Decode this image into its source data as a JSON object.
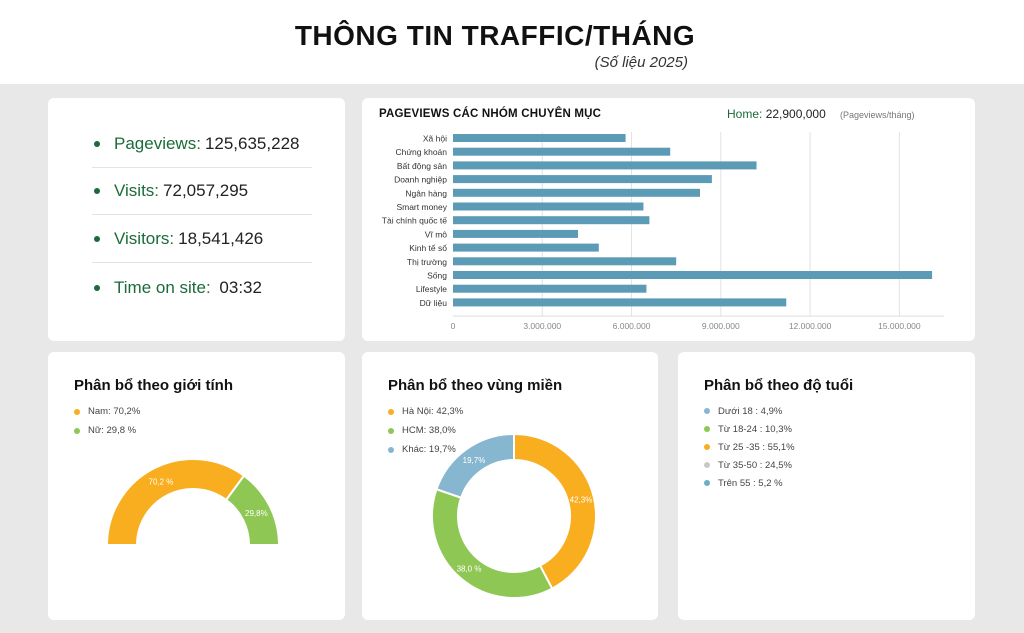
{
  "header": {
    "title": "THÔNG TIN TRAFFIC/THÁNG",
    "subtitle": "(Số liệu 2025)"
  },
  "stats": [
    {
      "label": "Pageviews:",
      "value": "125,635,228"
    },
    {
      "label": "Visits:",
      "value": "72,057,295"
    },
    {
      "label": "Visitors:",
      "value": "18,541,426"
    },
    {
      "label": "Time on site:",
      "value": " 03:32"
    }
  ],
  "pageviews": {
    "title": "PAGEVIEWS CÁC NHÓM CHUYÊN MỤC",
    "home_label": "Home:",
    "home_value": "22,900,000",
    "unit": "(Pageviews/tháng)"
  },
  "colors": {
    "bar": "#5b9bb5",
    "orange": "#f8ae1f",
    "green": "#8fc754",
    "light": "#e6e6e6",
    "blue": "#86b6d0",
    "gray": "#c9c9c9",
    "teal": "#6baec5",
    "accent": "#1b6b3a"
  },
  "chart_data": [
    {
      "type": "bar",
      "orientation": "horizontal",
      "title": "PAGEVIEWS CÁC NHÓM CHUYÊN MỤC",
      "categories": [
        "Xã hội",
        "Chứng khoán",
        "Bất động sản",
        "Doanh nghiệp",
        "Ngân hàng",
        "Smart money",
        "Tài chính quốc tế",
        "Vĩ mô",
        "Kinh tế số",
        "Thị trường",
        "Sống",
        "Lifestyle",
        "Dữ liệu"
      ],
      "values": [
        5800000,
        7300000,
        10200000,
        8700000,
        8300000,
        6400000,
        6600000,
        4200000,
        4900000,
        7500000,
        16100000,
        6500000,
        11200000
      ],
      "xlim": [
        0,
        16500000
      ],
      "xticks": [
        0,
        3000000,
        6000000,
        9000000,
        12000000,
        15000000
      ],
      "xtick_labels": [
        "0",
        "3.000.000",
        "6.000.000",
        "9.000.000",
        "12.000.000",
        "15.000.000"
      ],
      "grid": true
    },
    {
      "type": "pie",
      "variant": "half-donut",
      "title": "Phân bổ theo giới tính",
      "legend": [
        "Nam: 70,2%",
        "Nữ: 29,8 %"
      ],
      "slices": [
        {
          "value": 70.2,
          "label": "70,2 %",
          "color": "#f8ae1f"
        },
        {
          "value": 29.8,
          "label": "29,8%",
          "color": "#8fc754"
        }
      ]
    },
    {
      "type": "pie",
      "variant": "donut",
      "title": "Phân bổ theo vùng miền",
      "legend": [
        "Hà Nội: 42,3%",
        "HCM: 38,0%",
        "Khác: 19,7%"
      ],
      "slices": [
        {
          "value": 42.3,
          "label": "42,3%",
          "color": "#f8ae1f"
        },
        {
          "value": 38.0,
          "label": "38,0 %",
          "color": "#8fc754"
        },
        {
          "value": 19.7,
          "label": "19,7%",
          "color": "#86b6d0"
        }
      ]
    },
    {
      "type": "pie",
      "title": "Phân bổ theo độ tuổi",
      "legend": [
        "Dưới 18 : 4,9%",
        "Từ 18-24 : 10,3%",
        "Từ 25 -35 : 55,1%",
        "Từ 35-50 : 24,5%",
        "Trên 55 : 5,2 %"
      ],
      "slices": [
        {
          "value": 4.9,
          "color": "#86b6d0"
        },
        {
          "value": 10.3,
          "color": "#8fc754"
        },
        {
          "value": 55.1,
          "color": "#f8ae1f"
        },
        {
          "value": 24.5,
          "color": "#c9c9c9"
        },
        {
          "value": 5.2,
          "color": "#6baec5"
        }
      ]
    }
  ]
}
